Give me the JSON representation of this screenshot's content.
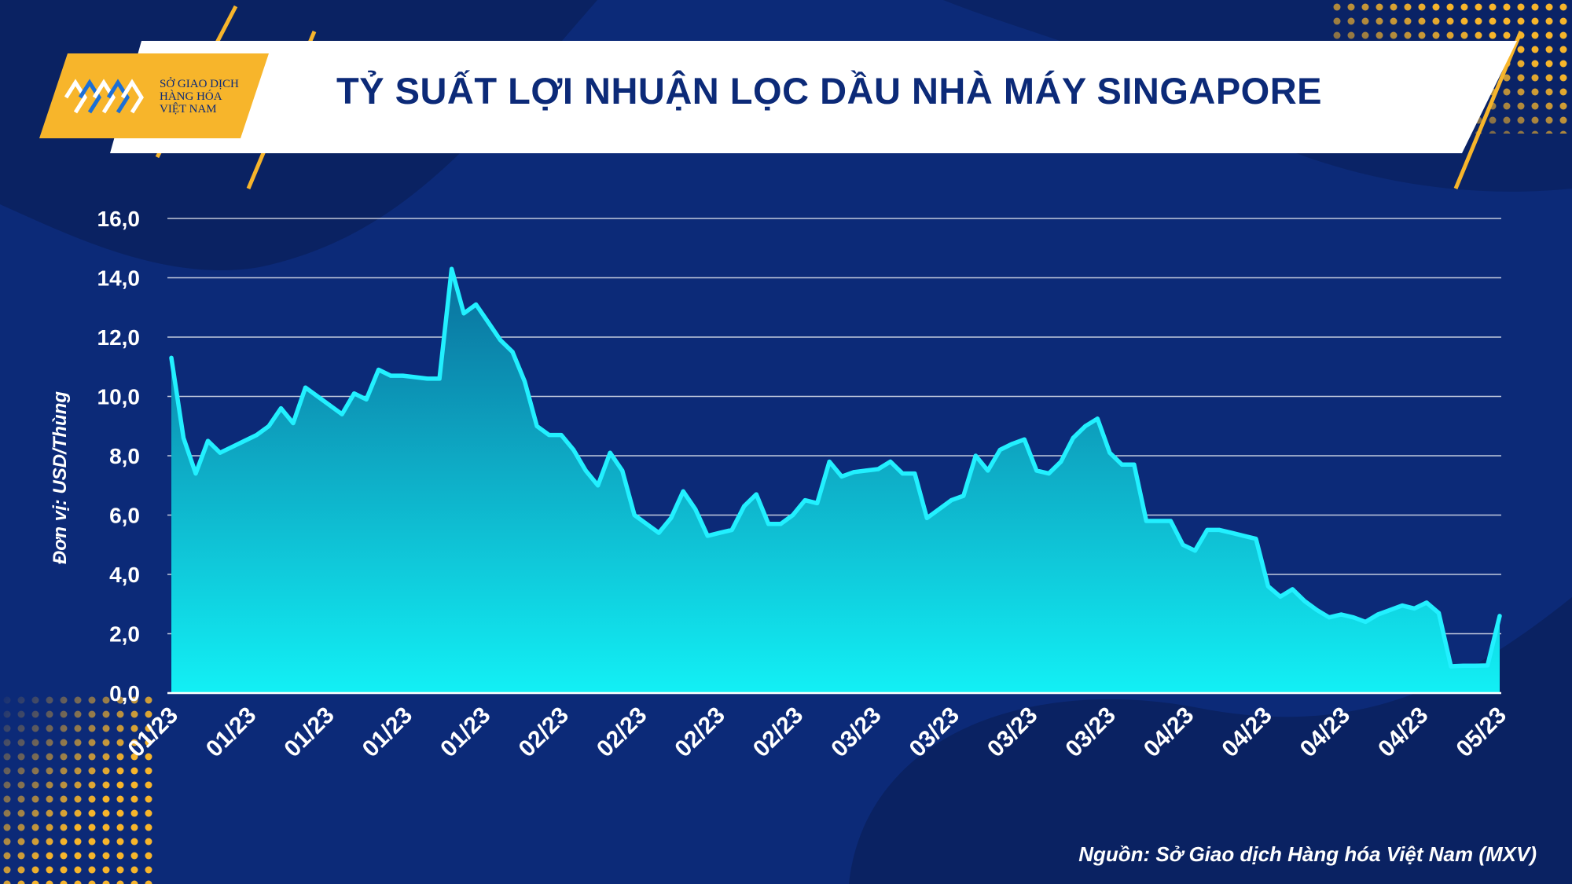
{
  "header": {
    "title": "TỶ SUẤT LỢI NHUẬN LỌC DẦU NHÀ MÁY SINGAPORE",
    "logo_lines": [
      "SỞ GIAO DỊCH",
      "HÀNG HÓA",
      "VIỆT NAM"
    ]
  },
  "footer": {
    "source": "Nguồn: Sở Giao dịch Hàng hóa Việt Nam (MXV)"
  },
  "colors": {
    "background": "#0c2a78",
    "accent": "#f7b52b",
    "line": "#22f0ff",
    "area_top": "#0a6f9c",
    "area_bottom": "#12f0f5"
  },
  "chart_data": {
    "type": "area",
    "title": "TỶ SUẤT LỢI NHUẬN LỌC DẦU NHÀ MÁY SINGAPORE",
    "ylabel": "Đơn vị: USD/Thùng",
    "ylim": [
      0,
      16
    ],
    "yticks": [
      "0,0",
      "2,0",
      "4,0",
      "6,0",
      "8,0",
      "10,0",
      "12,0",
      "14,0",
      "16,0"
    ],
    "xticks": [
      "01/23",
      "01/23",
      "01/23",
      "01/23",
      "01/23",
      "02/23",
      "02/23",
      "02/23",
      "02/23",
      "03/23",
      "03/23",
      "03/23",
      "03/23",
      "04/23",
      "04/23",
      "04/23",
      "04/23",
      "05/23"
    ],
    "grid": true,
    "values": [
      11.3,
      8.6,
      7.4,
      8.5,
      8.1,
      8.3,
      8.5,
      8.7,
      9.0,
      9.6,
      9.1,
      10.3,
      10.0,
      9.7,
      9.4,
      10.1,
      9.9,
      10.9,
      10.7,
      10.7,
      10.65,
      10.6,
      10.6,
      14.3,
      12.8,
      13.1,
      12.5,
      11.9,
      11.5,
      10.5,
      9.0,
      8.7,
      8.7,
      8.2,
      7.5,
      7.0,
      8.1,
      7.5,
      6.0,
      5.7,
      5.4,
      5.9,
      6.8,
      6.2,
      5.3,
      5.4,
      5.5,
      6.3,
      6.7,
      5.7,
      5.7,
      6.0,
      6.5,
      6.4,
      7.8,
      7.3,
      7.45,
      7.5,
      7.55,
      7.8,
      7.4,
      7.4,
      5.9,
      6.2,
      6.5,
      6.65,
      8.0,
      7.5,
      8.2,
      8.4,
      8.55,
      7.5,
      7.4,
      7.8,
      8.6,
      9.0,
      9.25,
      8.1,
      7.7,
      7.7,
      5.8,
      5.8,
      5.8,
      5.0,
      4.8,
      5.5,
      5.5,
      5.4,
      5.3,
      5.2,
      3.6,
      3.25,
      3.5,
      3.1,
      2.8,
      2.55,
      2.65,
      2.55,
      2.4,
      2.65,
      2.8,
      2.95,
      2.85,
      3.05,
      2.7,
      0.9,
      0.92,
      0.92,
      0.93,
      2.6
    ]
  }
}
